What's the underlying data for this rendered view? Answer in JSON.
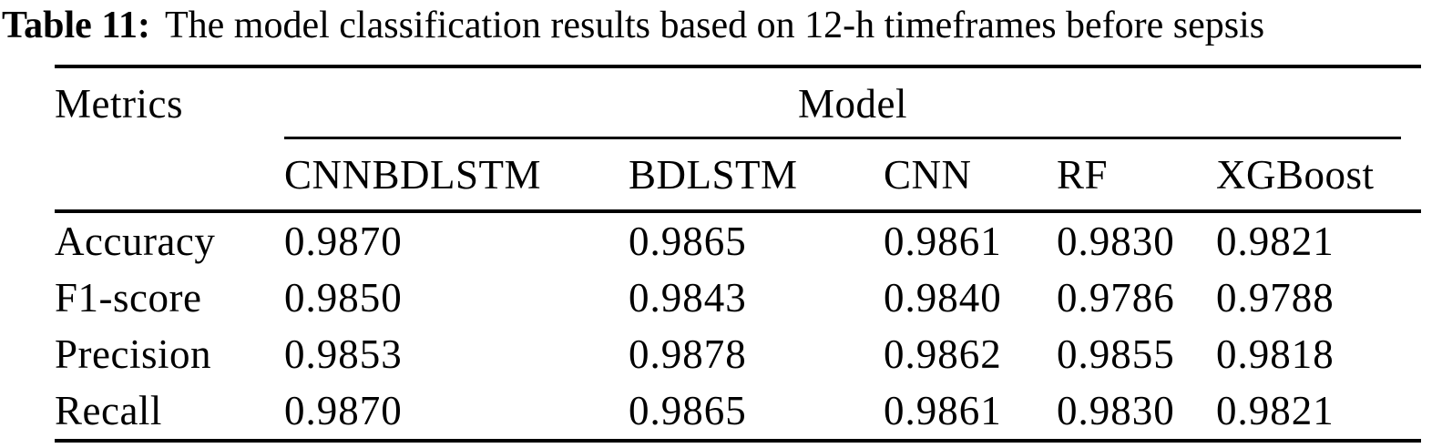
{
  "caption": {
    "label": "Table 11:",
    "text": "The model classification results based on 12-h timeframes before sepsis"
  },
  "table": {
    "corner_header": "Metrics",
    "group_header": "Model",
    "columns": [
      "CNNBDLSTM",
      "BDLSTM",
      "CNN",
      "RF",
      "XGBoost"
    ],
    "rows": [
      {
        "metric": "Accuracy",
        "values": [
          "0.9870",
          "0.9865",
          "0.9861",
          "0.9830",
          "0.9821"
        ]
      },
      {
        "metric": "F1-score",
        "values": [
          "0.9850",
          "0.9843",
          "0.9840",
          "0.9786",
          "0.9788"
        ]
      },
      {
        "metric": "Precision",
        "values": [
          "0.9853",
          "0.9878",
          "0.9862",
          "0.9855",
          "0.9818"
        ]
      },
      {
        "metric": "Recall",
        "values": [
          "0.9870",
          "0.9865",
          "0.9861",
          "0.9830",
          "0.9821"
        ]
      }
    ]
  },
  "chart_data": {
    "type": "table",
    "title": "Table 11: The model classification results based on 12-h timeframes before sepsis",
    "row_header": "Metrics",
    "column_group": "Model",
    "columns": [
      "CNNBDLSTM",
      "BDLSTM",
      "CNN",
      "RF",
      "XGBoost"
    ],
    "rows": [
      "Accuracy",
      "F1-score",
      "Precision",
      "Recall"
    ],
    "values": [
      [
        0.987,
        0.9865,
        0.9861,
        0.983,
        0.9821
      ],
      [
        0.985,
        0.9843,
        0.984,
        0.9786,
        0.9788
      ],
      [
        0.9853,
        0.9878,
        0.9862,
        0.9855,
        0.9818
      ],
      [
        0.987,
        0.9865,
        0.9861,
        0.983,
        0.9821
      ]
    ]
  }
}
